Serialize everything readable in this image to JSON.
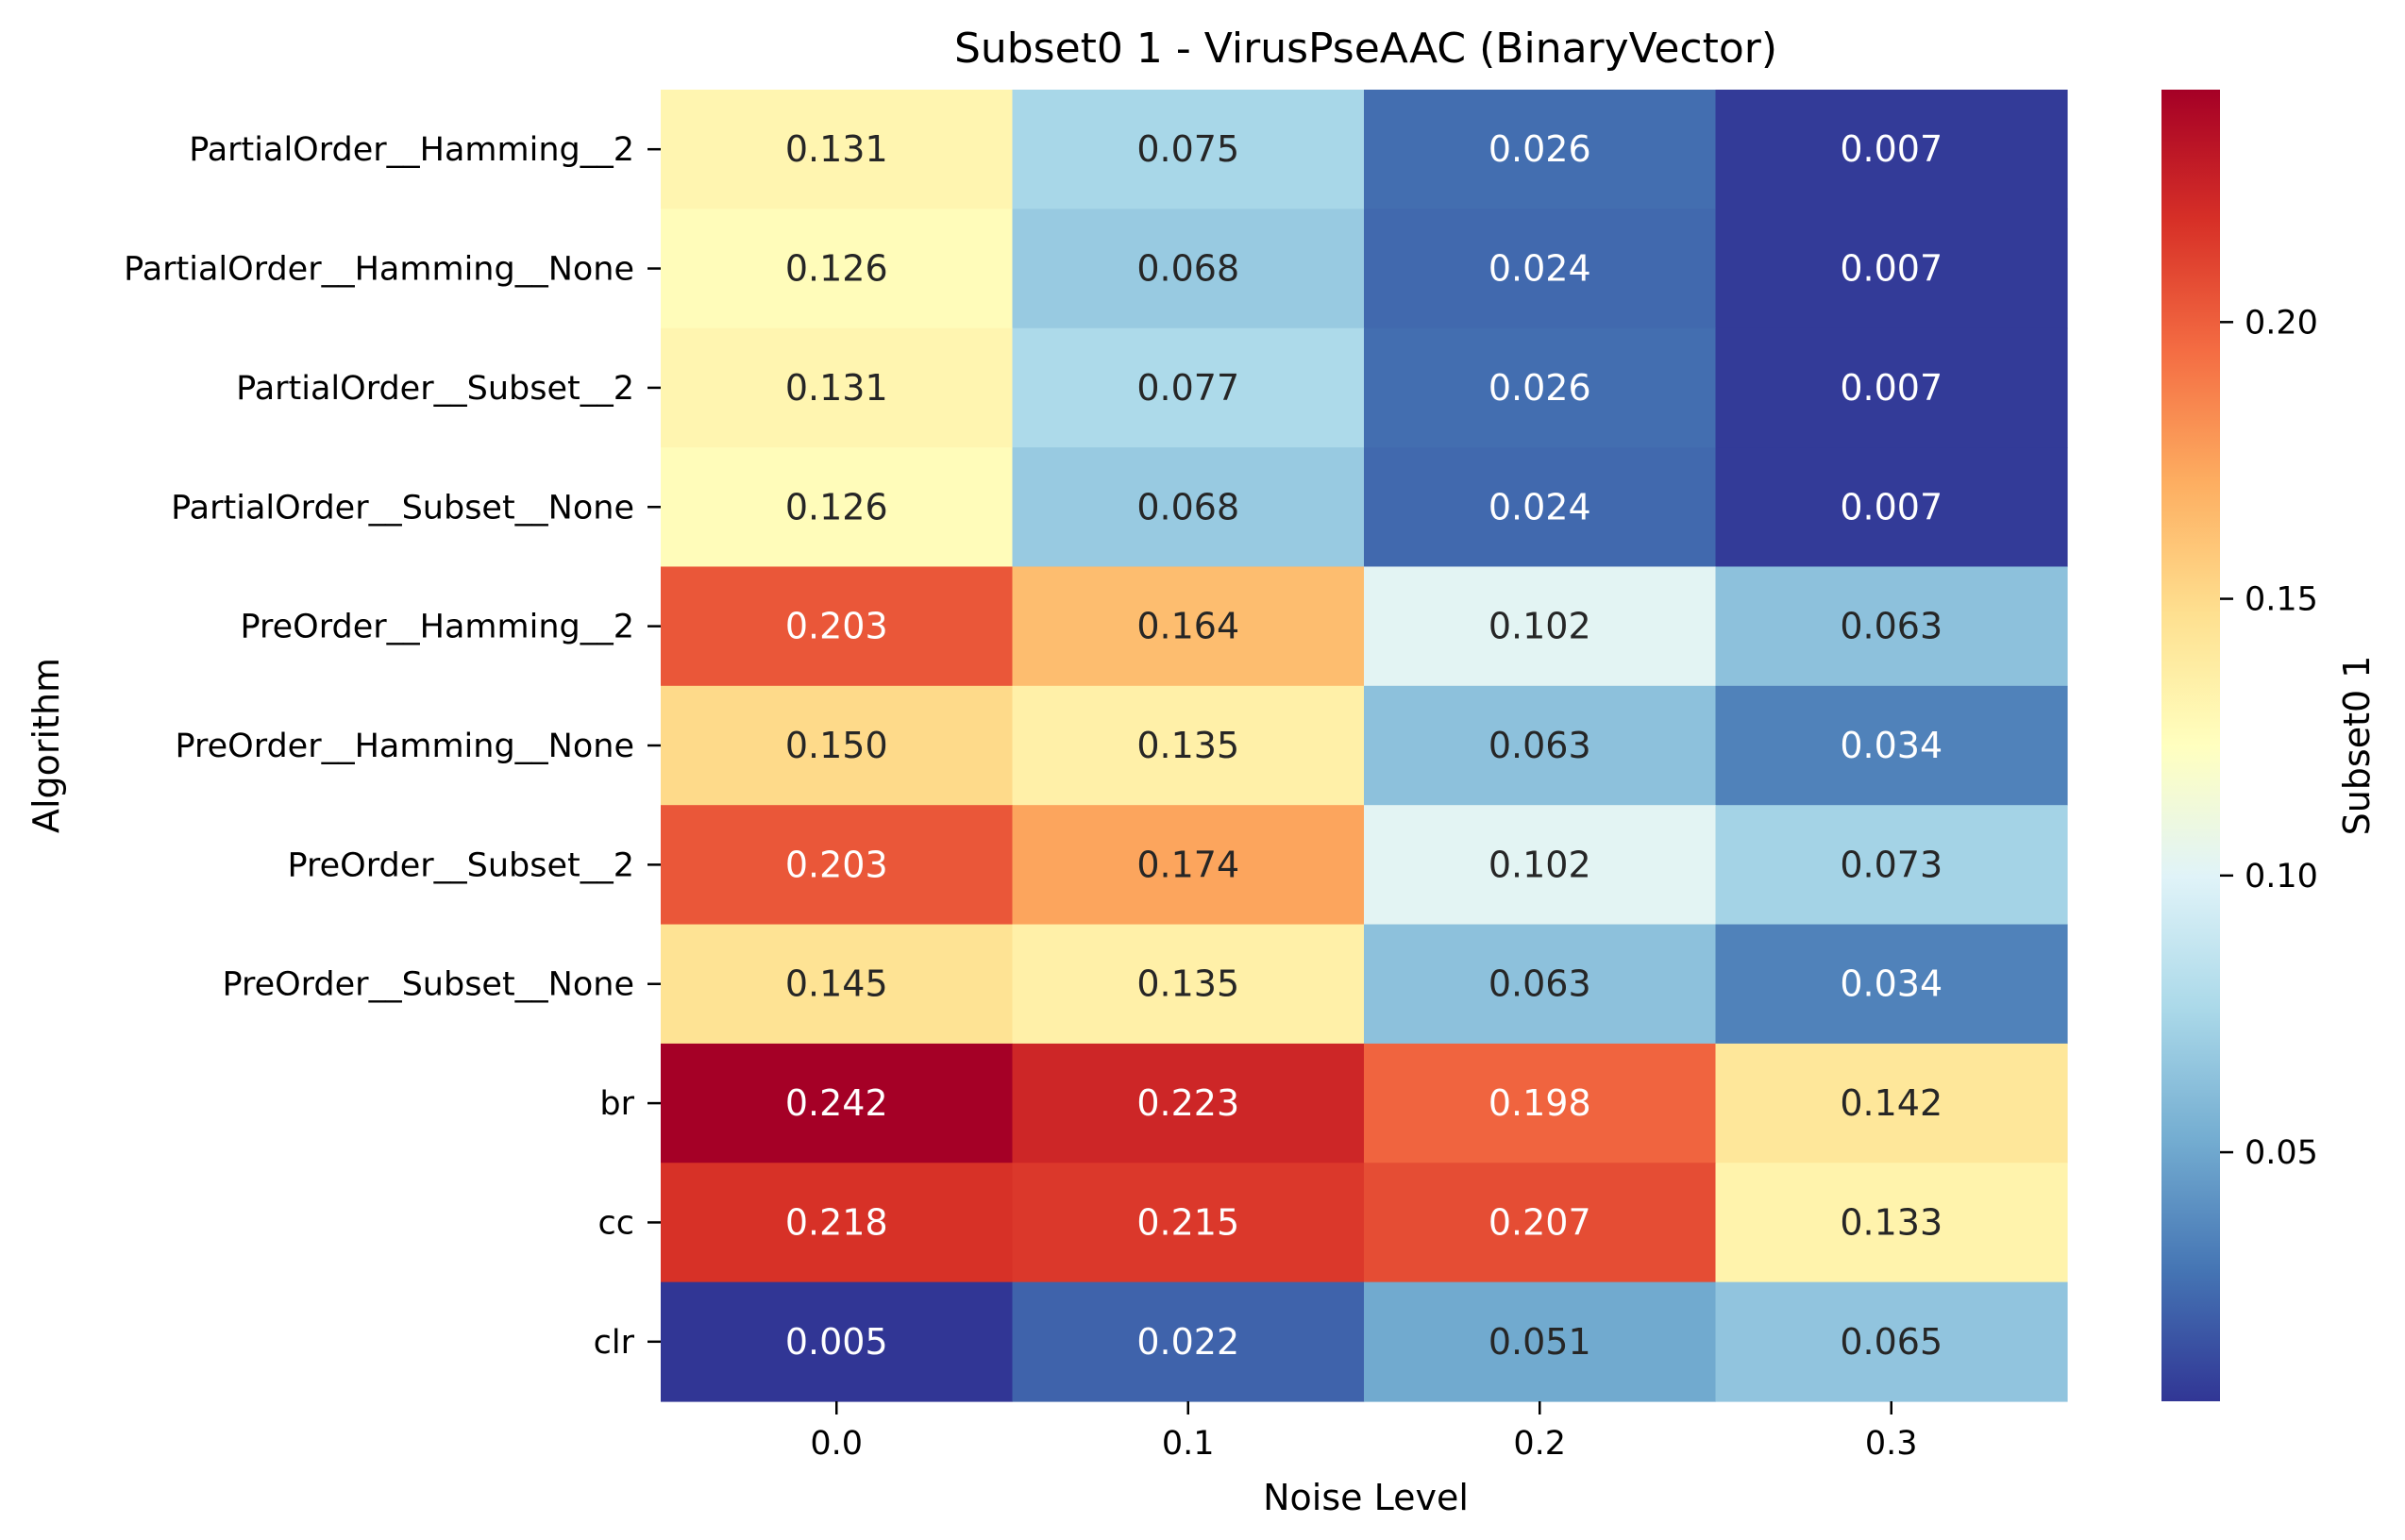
{
  "chart_data": {
    "type": "heatmap",
    "title": "Subset0 1 - VirusPseAAC (BinaryVector)",
    "xlabel": "Noise Level",
    "ylabel": "Algorithm",
    "x_categories": [
      "0.0",
      "0.1",
      "0.2",
      "0.3"
    ],
    "y_categories": [
      "PartialOrder__Hamming__2",
      "PartialOrder__Hamming__None",
      "PartialOrder__Subset__2",
      "PartialOrder__Subset__None",
      "PreOrder__Hamming__2",
      "PreOrder__Hamming__None",
      "PreOrder__Subset__2",
      "PreOrder__Subset__None",
      "br",
      "cc",
      "clr"
    ],
    "values": [
      [
        0.131,
        0.075,
        0.026,
        0.007
      ],
      [
        0.126,
        0.068,
        0.024,
        0.007
      ],
      [
        0.131,
        0.077,
        0.026,
        0.007
      ],
      [
        0.126,
        0.068,
        0.024,
        0.007
      ],
      [
        0.203,
        0.164,
        0.102,
        0.063
      ],
      [
        0.15,
        0.135,
        0.063,
        0.034
      ],
      [
        0.203,
        0.174,
        0.102,
        0.073
      ],
      [
        0.145,
        0.135,
        0.063,
        0.034
      ],
      [
        0.242,
        0.223,
        0.198,
        0.142
      ],
      [
        0.218,
        0.215,
        0.207,
        0.133
      ],
      [
        0.005,
        0.022,
        0.051,
        0.065
      ]
    ],
    "value_labels": [
      [
        "0.131",
        "0.075",
        "0.026",
        "0.007"
      ],
      [
        "0.126",
        "0.068",
        "0.024",
        "0.007"
      ],
      [
        "0.131",
        "0.077",
        "0.026",
        "0.007"
      ],
      [
        "0.126",
        "0.068",
        "0.024",
        "0.007"
      ],
      [
        "0.203",
        "0.164",
        "0.102",
        "0.063"
      ],
      [
        "0.150",
        "0.135",
        "0.063",
        "0.034"
      ],
      [
        "0.203",
        "0.174",
        "0.102",
        "0.073"
      ],
      [
        "0.145",
        "0.135",
        "0.063",
        "0.034"
      ],
      [
        "0.242",
        "0.223",
        "0.198",
        "0.142"
      ],
      [
        "0.218",
        "0.215",
        "0.207",
        "0.133"
      ],
      [
        "0.005",
        "0.022",
        "0.051",
        "0.065"
      ]
    ],
    "colormap": "RdYlBu_r",
    "colormap_stops": [
      "#313695",
      "#4575b4",
      "#74add1",
      "#abd9e9",
      "#e0f3f8",
      "#ffffbf",
      "#fee090",
      "#fdae61",
      "#f46d43",
      "#d73027",
      "#a50026"
    ],
    "vmin": 0.005,
    "vmax": 0.242,
    "colorbar": {
      "label": "Subset0 1",
      "ticks": [
        0.05,
        0.1,
        0.15,
        0.2
      ],
      "tick_labels": [
        "0.05",
        "0.10",
        "0.15",
        "0.20"
      ]
    }
  }
}
